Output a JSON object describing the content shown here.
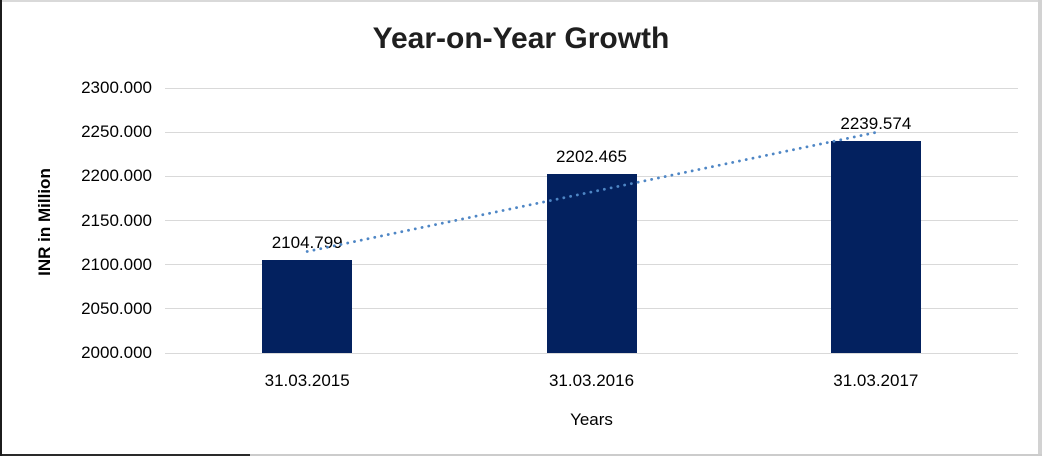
{
  "chart_data": {
    "type": "bar",
    "title": "Year-on-Year Growth",
    "categories": [
      "31.03.2015",
      "31.03.2016",
      "31.03.2017"
    ],
    "values": [
      2104.799,
      2202.465,
      2239.574
    ],
    "value_labels": [
      "2104.799",
      "2202.465",
      "2239.574"
    ],
    "xlabel": "Years",
    "ylabel": "INR in Million",
    "ylim": [
      2000,
      2300
    ],
    "yticks": [
      {
        "value": 2000,
        "label": "2000.000"
      },
      {
        "value": 2050,
        "label": "2050.000"
      },
      {
        "value": 2100,
        "label": "2100.000"
      },
      {
        "value": 2150,
        "label": "2150.000"
      },
      {
        "value": 2200,
        "label": "2200.000"
      },
      {
        "value": 2250,
        "label": "2250.000"
      },
      {
        "value": 2300,
        "label": "2300.000"
      }
    ],
    "grid": true,
    "legend_position": "none",
    "trendline": {
      "type": "linear",
      "style": "dotted"
    },
    "colors": {
      "bar": "#03215f",
      "trendline": "#4e86c5",
      "gridline": "#d9d9d9",
      "title": "#1f1f1f",
      "axis_text": "#000000"
    }
  }
}
